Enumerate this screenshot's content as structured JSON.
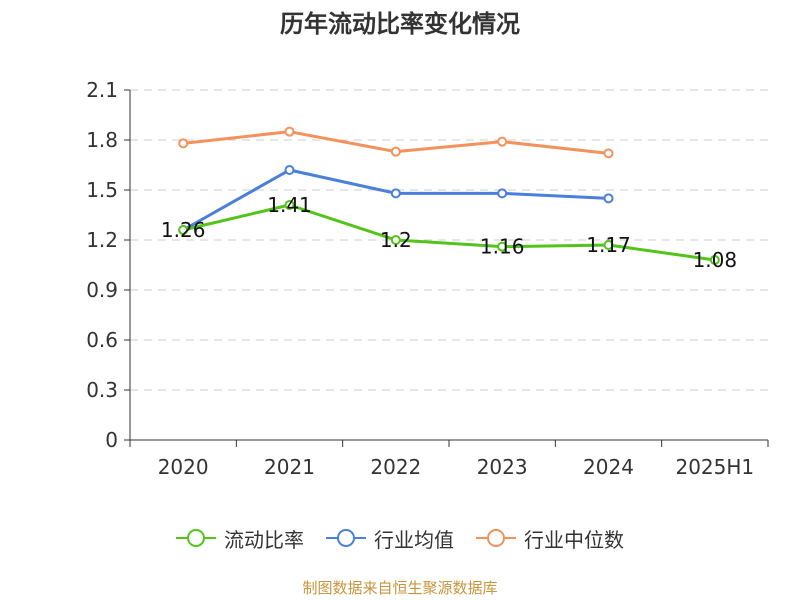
{
  "title": "历年流动比率变化情况",
  "source": "制图数据来自恒生聚源数据库",
  "chart_data": {
    "type": "line",
    "title": "历年流动比率变化情况",
    "categories": [
      "2020",
      "2021",
      "2022",
      "2023",
      "2024",
      "2025H1"
    ],
    "yticks": [
      "0",
      "0.3",
      "0.6",
      "0.9",
      "1.2",
      "1.5",
      "1.8",
      "2.1"
    ],
    "ylim": [
      0,
      2.1
    ],
    "grid": true,
    "legend_position": "bottom",
    "series": [
      {
        "name": "流动比率",
        "color": "#52c41a",
        "values": [
          1.26,
          1.41,
          1.2,
          1.16,
          1.17,
          1.08
        ],
        "labels": [
          "1.26",
          "1.41",
          "1.2",
          "1.16",
          "1.17",
          "1.08"
        ]
      },
      {
        "name": "行业均值",
        "color": "#4a7fdc",
        "values": [
          1.26,
          1.62,
          1.48,
          1.48,
          1.45,
          null
        ]
      },
      {
        "name": "行业中位数",
        "color": "#f4925c",
        "values": [
          1.78,
          1.85,
          1.73,
          1.79,
          1.72,
          null
        ]
      }
    ]
  }
}
